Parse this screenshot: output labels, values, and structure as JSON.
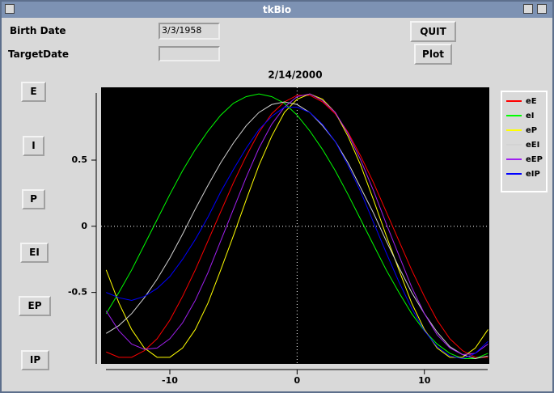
{
  "window": {
    "title": "tkBio"
  },
  "form": {
    "birth_date_label": "Birth Date",
    "birth_date_value": "3/3/1958",
    "target_date_label": "TargetDate"
  },
  "buttons": {
    "quit": "QUIT",
    "plot": "Plot"
  },
  "side_buttons": [
    "E",
    "I",
    "P",
    "EI",
    "EP",
    "IP"
  ],
  "chart_data": {
    "type": "line",
    "title": "2/14/2000",
    "x": [
      -15,
      -14,
      -13,
      -12,
      -11,
      -10,
      -9,
      -8,
      -7,
      -6,
      -5,
      -4,
      -3,
      -2,
      -1,
      0,
      1,
      2,
      3,
      4,
      5,
      6,
      7,
      8,
      9,
      10,
      11,
      12,
      13,
      14,
      15
    ],
    "series": [
      {
        "name": "eE",
        "color": "#ff0000",
        "values": [
          -0.95,
          -0.99,
          -0.99,
          -0.94,
          -0.85,
          -0.71,
          -0.53,
          -0.33,
          -0.11,
          0.11,
          0.33,
          0.53,
          0.71,
          0.85,
          0.94,
          0.99,
          0.99,
          0.94,
          0.85,
          0.71,
          0.53,
          0.33,
          0.11,
          -0.11,
          -0.33,
          -0.53,
          -0.71,
          -0.85,
          -0.94,
          -0.99,
          -0.99
        ]
      },
      {
        "name": "eI",
        "color": "#00ff00",
        "values": [
          -0.66,
          -0.5,
          -0.33,
          -0.14,
          0.05,
          0.24,
          0.42,
          0.58,
          0.72,
          0.84,
          0.93,
          0.98,
          1,
          0.98,
          0.93,
          0.84,
          0.72,
          0.58,
          0.42,
          0.24,
          0.05,
          -0.14,
          -0.33,
          -0.5,
          -0.66,
          -0.79,
          -0.89,
          -0.96,
          -1,
          -1,
          -0.96
        ]
      },
      {
        "name": "eP",
        "color": "#ffff00",
        "values": [
          -0.33,
          -0.58,
          -0.78,
          -0.92,
          -0.99,
          -0.99,
          -0.92,
          -0.78,
          -0.58,
          -0.33,
          -0.07,
          0.2,
          0.46,
          0.68,
          0.86,
          0.96,
          1,
          0.96,
          0.86,
          0.68,
          0.46,
          0.2,
          -0.07,
          -0.33,
          -0.58,
          -0.78,
          -0.92,
          -0.99,
          -0.99,
          -0.92,
          -0.78
        ]
      },
      {
        "name": "eEI",
        "color": "#d3d3d3",
        "values": [
          -0.81,
          -0.75,
          -0.66,
          -0.54,
          -0.4,
          -0.24,
          -0.06,
          0.13,
          0.31,
          0.48,
          0.63,
          0.76,
          0.86,
          0.92,
          0.94,
          0.92,
          0.86,
          0.76,
          0.64,
          0.48,
          0.29,
          0.1,
          -0.11,
          -0.31,
          -0.5,
          -0.66,
          -0.8,
          -0.91,
          -0.97,
          -1,
          -0.98
        ]
      },
      {
        "name": "eEP",
        "color": "#a020f0",
        "values": [
          -0.64,
          -0.79,
          -0.89,
          -0.93,
          -0.92,
          -0.85,
          -0.73,
          -0.56,
          -0.35,
          -0.11,
          0.13,
          0.37,
          0.59,
          0.77,
          0.9,
          0.98,
          1,
          0.95,
          0.86,
          0.7,
          0.5,
          0.27,
          0.02,
          -0.22,
          -0.46,
          -0.66,
          -0.82,
          -0.92,
          -0.97,
          -0.96,
          -0.89
        ]
      },
      {
        "name": "eIP",
        "color": "#0000ff",
        "values": [
          -0.5,
          -0.54,
          -0.56,
          -0.53,
          -0.47,
          -0.38,
          -0.25,
          -0.1,
          0.07,
          0.26,
          0.43,
          0.59,
          0.73,
          0.83,
          0.9,
          0.9,
          0.86,
          0.77,
          0.64,
          0.46,
          0.26,
          0.03,
          -0.2,
          -0.42,
          -0.62,
          -0.79,
          -0.91,
          -0.98,
          -1,
          -0.96,
          -0.87
        ]
      }
    ],
    "xlim": [
      -15.4,
      15.1
    ],
    "ylim": [
      -1.04,
      1.05
    ],
    "xticks": [
      -10,
      0,
      10
    ],
    "yticks": [
      0.5,
      0,
      -0.5
    ],
    "plot_background": "#000000",
    "crosshair": true,
    "legend": "right"
  }
}
